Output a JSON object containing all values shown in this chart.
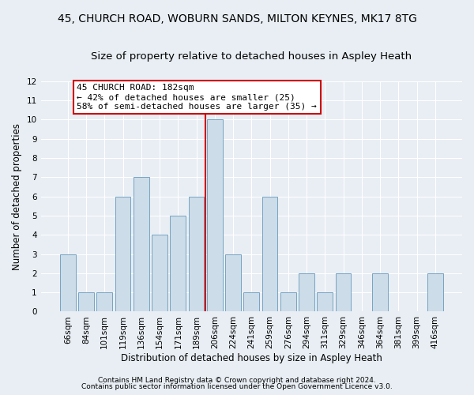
{
  "title_line1": "45, CHURCH ROAD, WOBURN SANDS, MILTON KEYNES, MK17 8TG",
  "title_line2": "Size of property relative to detached houses in Aspley Heath",
  "xlabel": "Distribution of detached houses by size in Aspley Heath",
  "ylabel": "Number of detached properties",
  "categories": [
    "66sqm",
    "84sqm",
    "101sqm",
    "119sqm",
    "136sqm",
    "154sqm",
    "171sqm",
    "189sqm",
    "206sqm",
    "224sqm",
    "241sqm",
    "259sqm",
    "276sqm",
    "294sqm",
    "311sqm",
    "329sqm",
    "346sqm",
    "364sqm",
    "381sqm",
    "399sqm",
    "416sqm"
  ],
  "values": [
    3,
    1,
    1,
    6,
    7,
    4,
    5,
    6,
    10,
    3,
    1,
    6,
    1,
    2,
    1,
    2,
    0,
    2,
    0,
    0,
    2
  ],
  "bar_color": "#ccdce8",
  "bar_edge_color": "#6699bb",
  "vline_x_index": 7,
  "vline_color": "#cc0000",
  "annotation_text": "45 CHURCH ROAD: 182sqm\n← 42% of detached houses are smaller (25)\n58% of semi-detached houses are larger (35) →",
  "annotation_box_color": "white",
  "annotation_box_edge_color": "#cc0000",
  "ylim": [
    0,
    12
  ],
  "yticks": [
    0,
    1,
    2,
    3,
    4,
    5,
    6,
    7,
    8,
    9,
    10,
    11,
    12
  ],
  "footer1": "Contains HM Land Registry data © Crown copyright and database right 2024.",
  "footer2": "Contains public sector information licensed under the Open Government Licence v3.0.",
  "background_color": "#e8eef4",
  "grid_color": "#ffffff",
  "title_fontsize": 10,
  "subtitle_fontsize": 9.5,
  "tick_fontsize": 7.5,
  "ylabel_fontsize": 8.5,
  "xlabel_fontsize": 8.5,
  "annotation_fontsize": 8,
  "footer_fontsize": 6.5
}
